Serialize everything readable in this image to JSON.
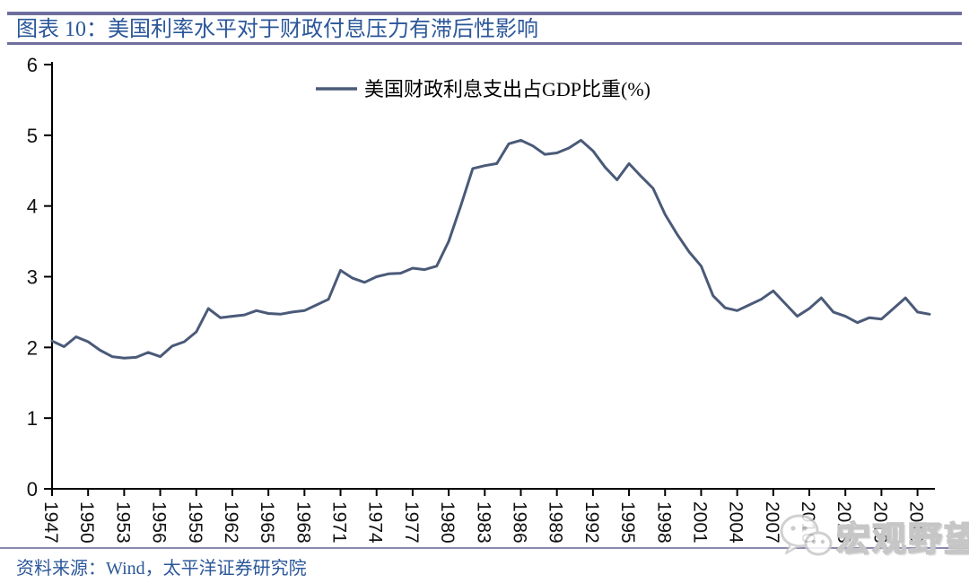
{
  "header": {
    "title": "图表 10：美国利率水平对于财政付息压力有滞后性影响"
  },
  "chart_data": {
    "type": "line",
    "title": "图表 10：美国利率水平对于财政付息压力有滞后性影响",
    "legend_position": "top-center",
    "grid": false,
    "xlabel": "",
    "ylabel": "",
    "ylim": [
      0,
      6
    ],
    "yticks": [
      0,
      1,
      2,
      3,
      4,
      5,
      6
    ],
    "xticks": [
      1947,
      1950,
      1953,
      1956,
      1959,
      1962,
      1965,
      1968,
      1971,
      1974,
      1977,
      1980,
      1983,
      1986,
      1989,
      1992,
      1995,
      1998,
      2001,
      2004,
      2007,
      2010,
      2013,
      2016,
      2019
    ],
    "x": [
      1947,
      1948,
      1949,
      1950,
      1951,
      1952,
      1953,
      1954,
      1955,
      1956,
      1957,
      1958,
      1959,
      1960,
      1961,
      1962,
      1963,
      1964,
      1965,
      1966,
      1967,
      1968,
      1969,
      1970,
      1971,
      1972,
      1973,
      1974,
      1975,
      1976,
      1977,
      1978,
      1979,
      1980,
      1981,
      1982,
      1983,
      1984,
      1985,
      1986,
      1987,
      1988,
      1989,
      1990,
      1991,
      1992,
      1993,
      1994,
      1995,
      1996,
      1997,
      1998,
      1999,
      2000,
      2001,
      2002,
      2003,
      2004,
      2005,
      2006,
      2007,
      2008,
      2009,
      2010,
      2011,
      2012,
      2013,
      2014,
      2015,
      2016,
      2017,
      2018,
      2019,
      2020
    ],
    "series": [
      {
        "name": "美国财政利息支出占GDP比重(%)",
        "color": "#4a5a78",
        "values": [
          2.09,
          2.01,
          2.15,
          2.08,
          1.96,
          1.87,
          1.85,
          1.86,
          1.93,
          1.87,
          2.02,
          2.08,
          2.22,
          2.55,
          2.42,
          2.44,
          2.46,
          2.52,
          2.48,
          2.47,
          2.5,
          2.52,
          2.6,
          2.68,
          3.09,
          2.98,
          2.92,
          3.0,
          3.04,
          3.05,
          3.12,
          3.1,
          3.15,
          3.5,
          4.0,
          4.53,
          4.57,
          4.6,
          4.88,
          4.93,
          4.85,
          4.73,
          4.75,
          4.82,
          4.93,
          4.78,
          4.55,
          4.37,
          4.6,
          4.42,
          4.25,
          3.88,
          3.6,
          3.35,
          3.15,
          2.73,
          2.56,
          2.52,
          2.6,
          2.68,
          2.8,
          2.62,
          2.44,
          2.55,
          2.7,
          2.5,
          2.44,
          2.35,
          2.42,
          2.4,
          2.55,
          2.7,
          2.5,
          2.47
        ]
      }
    ]
  },
  "footer": {
    "source": "资料来源：Wind，太平洋证券研究院"
  },
  "watermark": {
    "text": "宏观野望"
  },
  "colors": {
    "header_rule": "#6f6f9e",
    "footer_rule": "#8a8ab0",
    "heading_text": "#2b579a",
    "axis": "#000000",
    "line": "#4a5a78"
  }
}
